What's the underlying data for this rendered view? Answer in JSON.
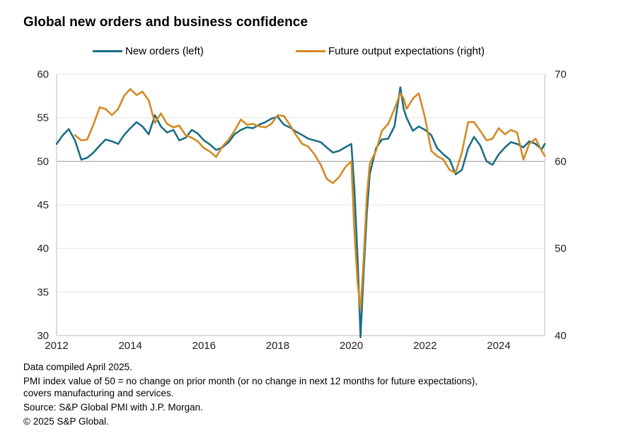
{
  "title": "Global new orders and business confidence",
  "legend": [
    {
      "label": "New orders (left)",
      "color": "#1b6e86"
    },
    {
      "label": "Future output expectations (right)",
      "color": "#d38a23"
    }
  ],
  "notes": {
    "compiled": "Data compiled April 2025.",
    "pmi_line1": "PMI index value of 50 = no change on prior month (or no change in next 12 months for future expectations),",
    "pmi_line2": "covers manufacturing and services.",
    "source": "Source: S&P Global PMI with J.P. Morgan.",
    "copyright": "© 2025 S&P Global."
  },
  "chart_data": {
    "type": "line",
    "title": "Global new orders and business confidence",
    "x_ticks": [
      "2012",
      "2014",
      "2016",
      "2018",
      "2020",
      "2022",
      "2024"
    ],
    "xlim": [
      2012.0,
      2025.25
    ],
    "y_left": {
      "ylim": [
        30,
        60
      ],
      "ticks": [
        "60",
        "55",
        "50",
        "45",
        "40",
        "35",
        "30"
      ]
    },
    "y_right": {
      "ylim": [
        40,
        70
      ],
      "ticks": [
        "70",
        "60",
        "50",
        "40"
      ]
    },
    "grid": "horizontal",
    "legend_position": "top",
    "series": [
      {
        "name": "New orders (left)",
        "axis": "left",
        "color": "#1b6e86",
        "points": [
          [
            2012.0,
            52.0
          ],
          [
            2012.17,
            53.0
          ],
          [
            2012.33,
            53.7
          ],
          [
            2012.5,
            52.4
          ],
          [
            2012.67,
            50.2
          ],
          [
            2012.83,
            50.4
          ],
          [
            2013.0,
            51.0
          ],
          [
            2013.17,
            51.8
          ],
          [
            2013.33,
            52.5
          ],
          [
            2013.5,
            52.3
          ],
          [
            2013.67,
            52.0
          ],
          [
            2013.83,
            53.0
          ],
          [
            2014.0,
            53.8
          ],
          [
            2014.17,
            54.5
          ],
          [
            2014.33,
            54.0
          ],
          [
            2014.5,
            53.1
          ],
          [
            2014.67,
            55.3
          ],
          [
            2014.83,
            54.0
          ],
          [
            2015.0,
            53.3
          ],
          [
            2015.17,
            53.6
          ],
          [
            2015.33,
            52.4
          ],
          [
            2015.5,
            52.7
          ],
          [
            2015.67,
            53.6
          ],
          [
            2015.83,
            53.2
          ],
          [
            2016.0,
            52.4
          ],
          [
            2016.17,
            51.9
          ],
          [
            2016.33,
            51.3
          ],
          [
            2016.5,
            51.6
          ],
          [
            2016.67,
            52.2
          ],
          [
            2016.83,
            53.1
          ],
          [
            2017.0,
            53.6
          ],
          [
            2017.17,
            53.9
          ],
          [
            2017.33,
            53.8
          ],
          [
            2017.5,
            54.2
          ],
          [
            2017.67,
            54.5
          ],
          [
            2017.83,
            54.9
          ],
          [
            2018.0,
            55.1
          ],
          [
            2018.17,
            54.2
          ],
          [
            2018.33,
            53.9
          ],
          [
            2018.5,
            53.4
          ],
          [
            2018.67,
            53.0
          ],
          [
            2018.83,
            52.6
          ],
          [
            2019.0,
            52.4
          ],
          [
            2019.17,
            52.2
          ],
          [
            2019.33,
            51.6
          ],
          [
            2019.5,
            51.0
          ],
          [
            2019.67,
            51.2
          ],
          [
            2019.83,
            51.6
          ],
          [
            2020.0,
            52.0
          ],
          [
            2020.08,
            47.0
          ],
          [
            2020.17,
            38.8
          ],
          [
            2020.25,
            29.8
          ],
          [
            2020.33,
            37.0
          ],
          [
            2020.42,
            44.0
          ],
          [
            2020.5,
            48.5
          ],
          [
            2020.67,
            51.5
          ],
          [
            2020.83,
            52.5
          ],
          [
            2021.0,
            52.6
          ],
          [
            2021.17,
            54.0
          ],
          [
            2021.33,
            58.5
          ],
          [
            2021.42,
            56.0
          ],
          [
            2021.5,
            55.0
          ],
          [
            2021.67,
            53.5
          ],
          [
            2021.83,
            54.0
          ],
          [
            2022.0,
            53.6
          ],
          [
            2022.17,
            53.0
          ],
          [
            2022.33,
            51.5
          ],
          [
            2022.5,
            50.8
          ],
          [
            2022.67,
            50.2
          ],
          [
            2022.83,
            48.5
          ],
          [
            2023.0,
            49.0
          ],
          [
            2023.17,
            51.5
          ],
          [
            2023.33,
            52.8
          ],
          [
            2023.5,
            51.8
          ],
          [
            2023.67,
            50.0
          ],
          [
            2023.83,
            49.6
          ],
          [
            2024.0,
            50.8
          ],
          [
            2024.17,
            51.6
          ],
          [
            2024.33,
            52.2
          ],
          [
            2024.5,
            52.0
          ],
          [
            2024.67,
            51.6
          ],
          [
            2024.83,
            52.3
          ],
          [
            2025.0,
            52.0
          ],
          [
            2025.17,
            51.4
          ],
          [
            2025.25,
            52.0
          ]
        ]
      },
      {
        "name": "Future output expectations (right)",
        "axis": "right",
        "color": "#d38a23",
        "points": [
          [
            2012.5,
            63.0
          ],
          [
            2012.67,
            62.4
          ],
          [
            2012.83,
            62.5
          ],
          [
            2013.0,
            64.2
          ],
          [
            2013.17,
            66.2
          ],
          [
            2013.33,
            66.0
          ],
          [
            2013.5,
            65.3
          ],
          [
            2013.67,
            66.0
          ],
          [
            2013.83,
            67.5
          ],
          [
            2014.0,
            68.3
          ],
          [
            2014.17,
            67.6
          ],
          [
            2014.33,
            68.0
          ],
          [
            2014.5,
            67.0
          ],
          [
            2014.67,
            64.4
          ],
          [
            2014.83,
            65.5
          ],
          [
            2015.0,
            64.3
          ],
          [
            2015.17,
            63.9
          ],
          [
            2015.33,
            64.1
          ],
          [
            2015.5,
            63.0
          ],
          [
            2015.67,
            62.7
          ],
          [
            2015.83,
            62.3
          ],
          [
            2016.0,
            61.5
          ],
          [
            2016.17,
            61.1
          ],
          [
            2016.33,
            60.5
          ],
          [
            2016.5,
            61.7
          ],
          [
            2016.67,
            62.5
          ],
          [
            2016.83,
            63.5
          ],
          [
            2017.0,
            64.8
          ],
          [
            2017.17,
            64.2
          ],
          [
            2017.33,
            64.3
          ],
          [
            2017.5,
            64.0
          ],
          [
            2017.67,
            63.9
          ],
          [
            2017.83,
            64.3
          ],
          [
            2018.0,
            65.3
          ],
          [
            2018.17,
            65.2
          ],
          [
            2018.33,
            64.2
          ],
          [
            2018.5,
            63.0
          ],
          [
            2018.67,
            62.0
          ],
          [
            2018.83,
            61.7
          ],
          [
            2019.0,
            60.8
          ],
          [
            2019.17,
            59.6
          ],
          [
            2019.33,
            58.0
          ],
          [
            2019.5,
            57.5
          ],
          [
            2019.67,
            58.2
          ],
          [
            2019.83,
            59.3
          ],
          [
            2020.0,
            60.0
          ],
          [
            2020.08,
            52.0
          ],
          [
            2020.17,
            46.0
          ],
          [
            2020.25,
            43.0
          ],
          [
            2020.33,
            48.5
          ],
          [
            2020.42,
            56.0
          ],
          [
            2020.5,
            59.7
          ],
          [
            2020.67,
            61.2
          ],
          [
            2020.83,
            63.5
          ],
          [
            2021.0,
            64.3
          ],
          [
            2021.17,
            66.0
          ],
          [
            2021.33,
            67.8
          ],
          [
            2021.42,
            67.2
          ],
          [
            2021.5,
            66.0
          ],
          [
            2021.67,
            67.2
          ],
          [
            2021.83,
            67.8
          ],
          [
            2022.0,
            65.0
          ],
          [
            2022.17,
            61.2
          ],
          [
            2022.33,
            60.6
          ],
          [
            2022.5,
            60.2
          ],
          [
            2022.67,
            59.0
          ],
          [
            2022.83,
            58.7
          ],
          [
            2023.0,
            61.0
          ],
          [
            2023.17,
            64.5
          ],
          [
            2023.33,
            64.5
          ],
          [
            2023.5,
            63.5
          ],
          [
            2023.67,
            62.4
          ],
          [
            2023.83,
            62.6
          ],
          [
            2024.0,
            63.8
          ],
          [
            2024.17,
            63.1
          ],
          [
            2024.33,
            63.6
          ],
          [
            2024.5,
            63.3
          ],
          [
            2024.67,
            60.2
          ],
          [
            2024.83,
            62.0
          ],
          [
            2025.0,
            62.6
          ],
          [
            2025.17,
            61.2
          ],
          [
            2025.25,
            60.6
          ]
        ]
      }
    ]
  }
}
